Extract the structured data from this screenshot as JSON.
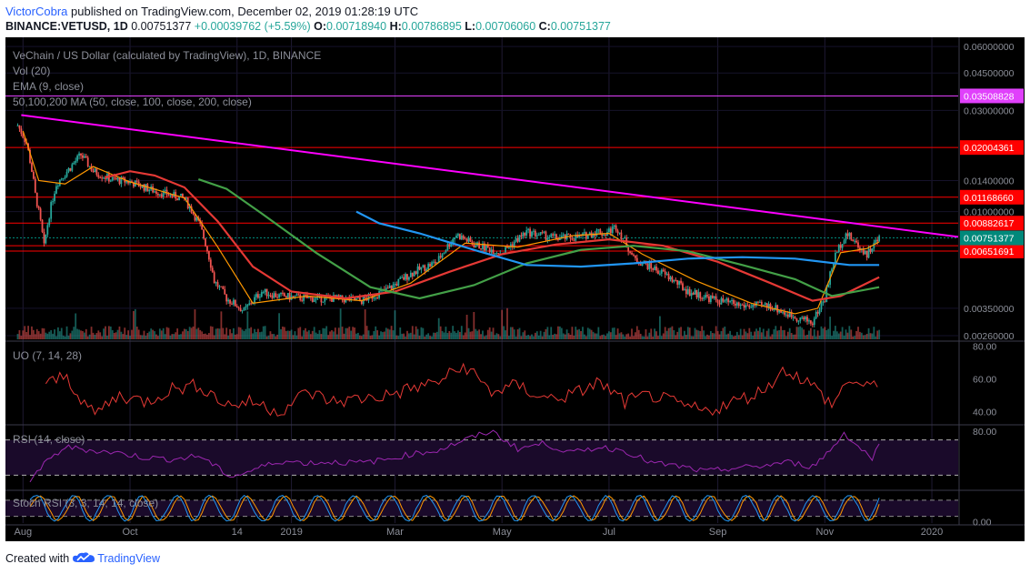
{
  "header": {
    "author": "VictorCobra",
    "published_text": "published on TradingView.com, December 02, 2019 01:28:19 UTC",
    "symbol_line": "BINANCE:VETUSD, 1D",
    "last": "0.00751377",
    "change": "+0.00039762 (+5.59%)",
    "o_label": "O:",
    "o": "0.00718940",
    "h_label": "H:",
    "h": "0.00786895",
    "l_label": "L:",
    "l": "0.00706060",
    "c_label": "C:",
    "c": "0.00751377"
  },
  "legend": {
    "main": "VeChain / US Dollar (calculated by TradingView), 1D, BINANCE",
    "vol": "Vol (20)",
    "ema": "EMA (9, close)",
    "ma": "50,100,200 MA (50, close, 100, close, 200, close)"
  },
  "panes": {
    "uo": "UO (7, 14, 28)",
    "rsi": "RSI (14, close)",
    "stoch": "Stoch RSI (3, 3, 14, 14, close)"
  },
  "footer": {
    "created_with": "Created with",
    "brand": "TradingView"
  },
  "chart_data": {
    "type": "line",
    "title": "VeChain / US Dollar (calculated by TradingView), 1D, BINANCE",
    "y_scale": "log",
    "ylim": [
      0.0025,
      0.065
    ],
    "price_ticks": [
      "0.06000000",
      "0.04500000",
      "0.03000000",
      "0.01400000",
      "0.01000000",
      "0.00350000",
      "0.00260000"
    ],
    "x_ticks": [
      "Aug",
      "Oct",
      "14",
      "2019",
      "Mar",
      "May",
      "Jul",
      "Sep",
      "Nov",
      "2020"
    ],
    "x_tick_dates": [
      "2018-08-01",
      "2018-10-01",
      "2018-12-01",
      "2019-01-01",
      "2019-03-01",
      "2019-05-01",
      "2019-07-01",
      "2019-09-01",
      "2019-11-01",
      "2020-01-01"
    ],
    "xlim": [
      "2018-07-22",
      "2020-01-16"
    ],
    "horizontal_levels": [
      {
        "label": "0.03508828",
        "value": 0.03508828,
        "color": "#e040fb"
      },
      {
        "label": "0.02004361",
        "value": 0.02004361,
        "color": "#ff0000"
      },
      {
        "label": "0.01168660",
        "value": 0.0116866,
        "color": "#ff0000"
      },
      {
        "label": "0.00882617",
        "value": 0.00882617,
        "color": "#ff0000"
      },
      {
        "label": "0.00690517",
        "value": 0.00690517,
        "color": "#ff0000"
      },
      {
        "label": "0.00651691",
        "value": 0.00651691,
        "color": "#ff0000"
      }
    ],
    "last_price": {
      "label": "0.00751377",
      "value": 0.00751377,
      "color": "#00897b"
    },
    "trendline": {
      "from": {
        "x": "2018-07-31",
        "y": 0.0285
      },
      "to": {
        "x": "2020-01-16",
        "y": 0.0076
      },
      "color": "#ff00ff"
    },
    "series": [
      {
        "name": "Price",
        "color": "#26a69a",
        "x": [
          "2018-07-29",
          "2018-08-03",
          "2018-08-08",
          "2018-08-13",
          "2018-08-20",
          "2018-08-27",
          "2018-09-03",
          "2018-09-10",
          "2018-09-20",
          "2018-10-01",
          "2018-10-15",
          "2018-11-01",
          "2018-11-10",
          "2018-11-18",
          "2018-11-25",
          "2018-12-05",
          "2018-12-15",
          "2018-12-25",
          "2019-01-10",
          "2019-01-25",
          "2019-02-10",
          "2019-02-25",
          "2019-03-10",
          "2019-03-25",
          "2019-04-05",
          "2019-04-15",
          "2019-05-01",
          "2019-05-15",
          "2019-06-01",
          "2019-06-15",
          "2019-06-25",
          "2019-06-28",
          "2019-07-05",
          "2019-07-15",
          "2019-08-01",
          "2019-08-15",
          "2019-09-01",
          "2019-09-15",
          "2019-10-01",
          "2019-10-10",
          "2019-10-20",
          "2019-10-25",
          "2019-11-01",
          "2019-11-07",
          "2019-11-13",
          "2019-11-20",
          "2019-11-25",
          "2019-12-02"
        ],
        "y": [
          0.0255,
          0.021,
          0.012,
          0.0068,
          0.0135,
          0.0158,
          0.0185,
          0.0155,
          0.0142,
          0.0138,
          0.0125,
          0.0115,
          0.0085,
          0.0047,
          0.0039,
          0.0034,
          0.0042,
          0.004,
          0.0039,
          0.0039,
          0.0038,
          0.0043,
          0.0051,
          0.0058,
          0.0078,
          0.007,
          0.0064,
          0.008,
          0.0075,
          0.0076,
          0.0081,
          0.0078,
          0.0085,
          0.006,
          0.0051,
          0.0042,
          0.0038,
          0.0036,
          0.0036,
          0.0033,
          0.0031,
          0.003,
          0.0039,
          0.0062,
          0.0079,
          0.0069,
          0.0063,
          0.0075
        ]
      },
      {
        "name": "EMA 9",
        "color": "#ff9800",
        "x": [
          "2018-08-01",
          "2018-08-10",
          "2018-08-25",
          "2018-09-10",
          "2018-10-01",
          "2018-11-01",
          "2018-11-20",
          "2018-12-10",
          "2019-01-10",
          "2019-02-10",
          "2019-03-10",
          "2019-04-10",
          "2019-05-10",
          "2019-06-10",
          "2019-07-01",
          "2019-07-20",
          "2019-08-20",
          "2019-09-20",
          "2019-10-15",
          "2019-10-28",
          "2019-11-10",
          "2019-11-25",
          "2019-12-02"
        ],
        "y": [
          0.024,
          0.014,
          0.0135,
          0.0163,
          0.0138,
          0.0116,
          0.0068,
          0.0037,
          0.004,
          0.0038,
          0.0046,
          0.0071,
          0.0068,
          0.0077,
          0.0079,
          0.0063,
          0.0047,
          0.0037,
          0.0033,
          0.0035,
          0.0064,
          0.0067,
          0.0072
        ]
      },
      {
        "name": "MA 50",
        "color": "#e53935",
        "x": [
          "2018-09-17",
          "2018-10-01",
          "2018-10-15",
          "2018-11-01",
          "2018-11-20",
          "2018-12-10",
          "2019-01-01",
          "2019-02-01",
          "2019-03-01",
          "2019-04-01",
          "2019-05-01",
          "2019-06-01",
          "2019-07-01",
          "2019-08-01",
          "2019-09-01",
          "2019-10-01",
          "2019-10-25",
          "2019-11-10",
          "2019-12-02"
        ],
        "y": [
          0.0145,
          0.0155,
          0.0148,
          0.013,
          0.009,
          0.0055,
          0.0042,
          0.0039,
          0.0042,
          0.0052,
          0.0063,
          0.007,
          0.0074,
          0.0069,
          0.0058,
          0.0046,
          0.0038,
          0.004,
          0.0049
        ]
      },
      {
        "name": "MA 100",
        "color": "#43a047",
        "x": [
          "2018-11-09",
          "2018-11-25",
          "2018-12-15",
          "2019-01-15",
          "2019-02-15",
          "2019-03-15",
          "2019-04-15",
          "2019-05-15",
          "2019-06-15",
          "2019-07-15",
          "2019-08-15",
          "2019-09-15",
          "2019-10-15",
          "2019-11-05",
          "2019-12-02"
        ],
        "y": [
          0.0142,
          0.0128,
          0.0098,
          0.0064,
          0.0044,
          0.0039,
          0.0045,
          0.0057,
          0.0066,
          0.0069,
          0.0065,
          0.0056,
          0.0048,
          0.004,
          0.0044
        ]
      },
      {
        "name": "MA 200",
        "color": "#2196f3",
        "x": [
          "2019-02-07",
          "2019-02-20",
          "2019-03-15",
          "2019-04-15",
          "2019-05-15",
          "2019-06-15",
          "2019-07-15",
          "2019-08-15",
          "2019-09-15",
          "2019-10-15",
          "2019-11-15",
          "2019-12-02"
        ],
        "y": [
          0.01,
          0.0088,
          0.0079,
          0.0066,
          0.0056,
          0.0055,
          0.0057,
          0.006,
          0.0061,
          0.006,
          0.0056,
          0.0056
        ]
      }
    ],
    "uo": {
      "ticks": [
        "80.00",
        "60.00",
        "40.00"
      ],
      "ylim": [
        33,
        82
      ],
      "color": "#e53935",
      "x": [
        "2018-08-14",
        "2018-08-25",
        "2018-09-10",
        "2018-09-25",
        "2018-10-10",
        "2018-10-25",
        "2018-11-10",
        "2018-11-25",
        "2018-12-10",
        "2018-12-25",
        "2019-01-10",
        "2019-01-25",
        "2019-02-10",
        "2019-02-25",
        "2019-03-10",
        "2019-03-25",
        "2019-04-10",
        "2019-04-25",
        "2019-05-10",
        "2019-05-25",
        "2019-06-10",
        "2019-06-25",
        "2019-07-10",
        "2019-07-25",
        "2019-08-10",
        "2019-08-25",
        "2019-09-10",
        "2019-09-25",
        "2019-10-10",
        "2019-10-25",
        "2019-11-05",
        "2019-11-15",
        "2019-11-25",
        "2019-12-02"
      ],
      "y": [
        56,
        62,
        38,
        50,
        46,
        54,
        56,
        44,
        46,
        40,
        52,
        46,
        48,
        50,
        54,
        58,
        68,
        52,
        56,
        48,
        50,
        58,
        46,
        50,
        44,
        40,
        46,
        52,
        66,
        56,
        44,
        60,
        54,
        58
      ]
    },
    "rsi": {
      "ticks": [
        "80.00"
      ],
      "band": [
        30,
        70
      ],
      "ylim": [
        15,
        85
      ],
      "color": "#9c27b0",
      "x": [
        "2018-08-05",
        "2018-08-14",
        "2018-08-25",
        "2018-09-10",
        "2018-09-25",
        "2018-10-10",
        "2018-10-25",
        "2018-11-10",
        "2018-11-20",
        "2018-11-28",
        "2018-12-10",
        "2018-12-25",
        "2019-01-10",
        "2019-01-25",
        "2019-02-10",
        "2019-02-25",
        "2019-03-10",
        "2019-03-25",
        "2019-04-10",
        "2019-04-25",
        "2019-05-10",
        "2019-05-25",
        "2019-06-10",
        "2019-06-25",
        "2019-07-10",
        "2019-07-25",
        "2019-08-10",
        "2019-08-25",
        "2019-09-10",
        "2019-09-25",
        "2019-10-10",
        "2019-10-25",
        "2019-11-05",
        "2019-11-12",
        "2019-11-20",
        "2019-11-28",
        "2019-12-02"
      ],
      "y": [
        25,
        44,
        62,
        58,
        55,
        50,
        48,
        52,
        38,
        28,
        36,
        46,
        44,
        45,
        44,
        48,
        54,
        58,
        70,
        80,
        60,
        66,
        55,
        62,
        58,
        44,
        40,
        34,
        38,
        40,
        45,
        40,
        60,
        78,
        62,
        50,
        64
      ]
    },
    "stoch": {
      "ticks": [
        "0.00"
      ],
      "band": [
        20,
        80
      ],
      "ylim": [
        -5,
        110
      ],
      "k_color": "#2196f3",
      "d_color": "#ff9800"
    }
  }
}
